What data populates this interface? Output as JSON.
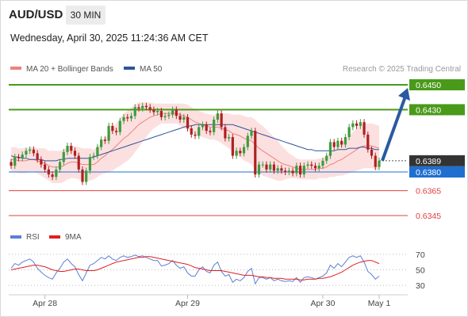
{
  "header": {
    "symbol": "AUD/USD",
    "timeframe": "30 MIN",
    "timestamp": "Wednesday, April 30, 2025 11:24:36 AM CET"
  },
  "chart_data": [
    {
      "type": "candlestick",
      "title": "AUD/USD",
      "interval": "30 MIN",
      "legend": [
        {
          "label": "MA 20 + Bollinger Bands",
          "color": "#f08080"
        },
        {
          "label": "MA 50",
          "color": "#2f5597"
        }
      ],
      "legend_position": "top-left",
      "credit": "Research © 2025 Trading Central",
      "x_tick_labels": [
        "Apr 28",
        "Apr 29",
        "Apr 30",
        "May 1"
      ],
      "ylim": [
        0.6338,
        0.6457
      ],
      "last_price": 0.6389,
      "price_levels": [
        {
          "label": "0.6450",
          "value": 0.645,
          "role": "resistance",
          "color": "#4a9a1a"
        },
        {
          "label": "0.6430",
          "value": 0.643,
          "role": "resistance",
          "color": "#4a9a1a"
        },
        {
          "label": "0.6389",
          "value": 0.6389,
          "role": "last-price",
          "color": "#333333"
        },
        {
          "label": "0.6380",
          "value": 0.638,
          "role": "pivot",
          "color": "#1f6fd1"
        },
        {
          "label": "0.6365",
          "value": 0.6365,
          "role": "support",
          "color": "#e04040"
        },
        {
          "label": "0.6345",
          "value": 0.6345,
          "role": "support",
          "color": "#e04040"
        }
      ],
      "scenario_arrow": {
        "from": 0.6389,
        "to": 0.645,
        "direction": "up",
        "color": "#2a5aa0"
      },
      "candles_close": [
        0.6385,
        0.6392,
        0.6391,
        0.6394,
        0.6397,
        0.6398,
        0.6395,
        0.639,
        0.6386,
        0.6382,
        0.6378,
        0.6376,
        0.6382,
        0.6388,
        0.6396,
        0.6401,
        0.6397,
        0.6393,
        0.6382,
        0.6372,
        0.6381,
        0.6392,
        0.6393,
        0.64,
        0.6406,
        0.6405,
        0.6417,
        0.6413,
        0.6412,
        0.6421,
        0.6424,
        0.6423,
        0.6425,
        0.6432,
        0.6431,
        0.6433,
        0.6432,
        0.643,
        0.6428,
        0.6429,
        0.6424,
        0.6425,
        0.6426,
        0.643,
        0.6425,
        0.6422,
        0.6424,
        0.6415,
        0.641,
        0.6409,
        0.6416,
        0.6418,
        0.6413,
        0.6412,
        0.6422,
        0.6427,
        0.6416,
        0.6407,
        0.6408,
        0.6393,
        0.6397,
        0.6395,
        0.64,
        0.6409,
        0.6413,
        0.6378,
        0.6386,
        0.6386,
        0.6382,
        0.6386,
        0.6381,
        0.6383,
        0.6381,
        0.638,
        0.6381,
        0.6379,
        0.6385,
        0.6378,
        0.6385,
        0.6386,
        0.6385,
        0.6383,
        0.6385,
        0.6389,
        0.6393,
        0.6404,
        0.64,
        0.6405,
        0.6402,
        0.6408,
        0.6416,
        0.6419,
        0.6417,
        0.642,
        0.641,
        0.6398,
        0.6393,
        0.6384,
        0.6389
      ],
      "ma20": [
        0.639,
        0.639,
        0.6389,
        0.6389,
        0.6389,
        0.639,
        0.639,
        0.6389,
        0.6388,
        0.6387,
        0.6385,
        0.6384,
        0.6384,
        0.6384,
        0.6385,
        0.6387,
        0.6388,
        0.6388,
        0.6387,
        0.6386,
        0.6386,
        0.6386,
        0.6386,
        0.6388,
        0.6391,
        0.6393,
        0.6396,
        0.6398,
        0.6401,
        0.6404,
        0.6407,
        0.6409,
        0.6412,
        0.6415,
        0.6418,
        0.642,
        0.6422,
        0.6424,
        0.6425,
        0.6426,
        0.6427,
        0.6427,
        0.6427,
        0.6427,
        0.6427,
        0.6426,
        0.6425,
        0.6424,
        0.6422,
        0.642,
        0.6419,
        0.6418,
        0.6417,
        0.6416,
        0.6416,
        0.6416,
        0.6415,
        0.6414,
        0.6413,
        0.6411,
        0.641,
        0.6409,
        0.6407,
        0.6406,
        0.6405,
        0.6402,
        0.6399,
        0.6397,
        0.6395,
        0.6393,
        0.6391,
        0.6389,
        0.6387,
        0.6386,
        0.6385,
        0.6384,
        0.6383,
        0.6382,
        0.6382,
        0.6382,
        0.6382,
        0.6382,
        0.6383,
        0.6383,
        0.6384,
        0.6386,
        0.6387,
        0.6389,
        0.639,
        0.6392,
        0.6394,
        0.6396,
        0.6398,
        0.64,
        0.6401,
        0.6401,
        0.6401,
        0.64,
        0.6399
      ],
      "bb_width": [
        0.001,
        0.001,
        0.001,
        0.001,
        0.001,
        0.001,
        0.001,
        0.001,
        0.0011,
        0.0012,
        0.0012,
        0.0013,
        0.0013,
        0.0013,
        0.0013,
        0.0013,
        0.0013,
        0.0013,
        0.0013,
        0.0013,
        0.0013,
        0.0013,
        0.0012,
        0.0012,
        0.0013,
        0.0014,
        0.0016,
        0.0017,
        0.0018,
        0.0019,
        0.002,
        0.002,
        0.002,
        0.0019,
        0.0018,
        0.0016,
        0.0014,
        0.0012,
        0.001,
        0.0009,
        0.0008,
        0.0008,
        0.0008,
        0.0008,
        0.0008,
        0.0009,
        0.001,
        0.001,
        0.001,
        0.001,
        0.001,
        0.001,
        0.001,
        0.001,
        0.001,
        0.0011,
        0.0012,
        0.0013,
        0.0014,
        0.0015,
        0.0016,
        0.0017,
        0.0018,
        0.0018,
        0.0019,
        0.002,
        0.002,
        0.002,
        0.0019,
        0.0018,
        0.0017,
        0.0016,
        0.0014,
        0.0012,
        0.001,
        0.0009,
        0.0008,
        0.0008,
        0.0008,
        0.0008,
        0.0008,
        0.0008,
        0.0008,
        0.0008,
        0.0009,
        0.001,
        0.0011,
        0.0012,
        0.0013,
        0.0014,
        0.0015,
        0.0016,
        0.0017,
        0.0018,
        0.0018,
        0.0018,
        0.0018,
        0.0018,
        0.0018
      ],
      "ma50": [
        0.6393,
        0.6392,
        0.6392,
        0.6391,
        0.6391,
        0.639,
        0.639,
        0.639,
        0.639,
        0.6389,
        0.6389,
        0.6389,
        0.6389,
        0.639,
        0.639,
        0.6391,
        0.6391,
        0.6391,
        0.6391,
        0.6391,
        0.6391,
        0.6391,
        0.6392,
        0.6393,
        0.6394,
        0.6395,
        0.6396,
        0.6397,
        0.6398,
        0.6399,
        0.64,
        0.6401,
        0.6402,
        0.6403,
        0.6404,
        0.6405,
        0.6406,
        0.6407,
        0.6408,
        0.6409,
        0.641,
        0.6411,
        0.6412,
        0.6413,
        0.6414,
        0.6415,
        0.6416,
        0.6417,
        0.6417,
        0.6418,
        0.6418,
        0.6418,
        0.6418,
        0.6418,
        0.6418,
        0.6418,
        0.6418,
        0.6418,
        0.6418,
        0.6418,
        0.6417,
        0.6416,
        0.6415,
        0.6414,
        0.6413,
        0.6412,
        0.6411,
        0.641,
        0.6409,
        0.6408,
        0.6407,
        0.6406,
        0.6405,
        0.6404,
        0.6403,
        0.6402,
        0.6401,
        0.64,
        0.6399,
        0.6398,
        0.6398,
        0.6397,
        0.6397,
        0.6397,
        0.6397,
        0.6397,
        0.6397,
        0.6398,
        0.6398,
        0.6398,
        0.6399,
        0.6399,
        0.6399,
        0.64,
        0.64,
        0.6399,
        0.6399,
        0.6398,
        0.6398
      ]
    },
    {
      "type": "line",
      "title": "RSI",
      "legend": [
        {
          "label": "RSI",
          "color": "#5b7fd6"
        },
        {
          "label": "9MA",
          "color": "#e02020"
        }
      ],
      "y_ticks": [
        "70",
        "50",
        "30"
      ],
      "ylim": [
        22,
        78
      ],
      "series": [
        {
          "name": "RSI",
          "values": [
            52,
            58,
            56,
            60,
            62,
            64,
            60,
            52,
            47,
            43,
            40,
            38,
            46,
            52,
            60,
            64,
            58,
            54,
            44,
            36,
            46,
            56,
            58,
            62,
            66,
            64,
            68,
            64,
            62,
            66,
            68,
            66,
            67,
            69,
            67,
            68,
            66,
            64,
            62,
            62,
            55,
            56,
            58,
            62,
            56,
            52,
            54,
            46,
            42,
            42,
            50,
            54,
            48,
            46,
            56,
            60,
            48,
            42,
            44,
            34,
            38,
            36,
            40,
            48,
            52,
            32,
            40,
            40,
            38,
            40,
            36,
            38,
            36,
            35,
            36,
            35,
            40,
            34,
            40,
            41,
            40,
            38,
            40,
            42,
            46,
            56,
            52,
            58,
            54,
            60,
            66,
            68,
            66,
            68,
            60,
            48,
            44,
            38,
            42
          ]
        },
        {
          "name": "9MA",
          "values": [
            50,
            51,
            52,
            53,
            54,
            55,
            56,
            56,
            55,
            54,
            52,
            50,
            49,
            48,
            48,
            49,
            50,
            51,
            51,
            50,
            49,
            49,
            49,
            50,
            52,
            54,
            56,
            58,
            60,
            61,
            62,
            63,
            64,
            65,
            66,
            66,
            67,
            67,
            66,
            65,
            64,
            63,
            62,
            61,
            60,
            59,
            58,
            57,
            55,
            53,
            52,
            51,
            50,
            49,
            49,
            49,
            49,
            48,
            47,
            46,
            45,
            44,
            43,
            43,
            43,
            42,
            41,
            41,
            40,
            40,
            39,
            39,
            39,
            38,
            38,
            38,
            38,
            37,
            37,
            38,
            38,
            38,
            39,
            39,
            40,
            41,
            43,
            45,
            47,
            50,
            53,
            56,
            58,
            60,
            61,
            62,
            62,
            60,
            58
          ]
        }
      ]
    }
  ]
}
